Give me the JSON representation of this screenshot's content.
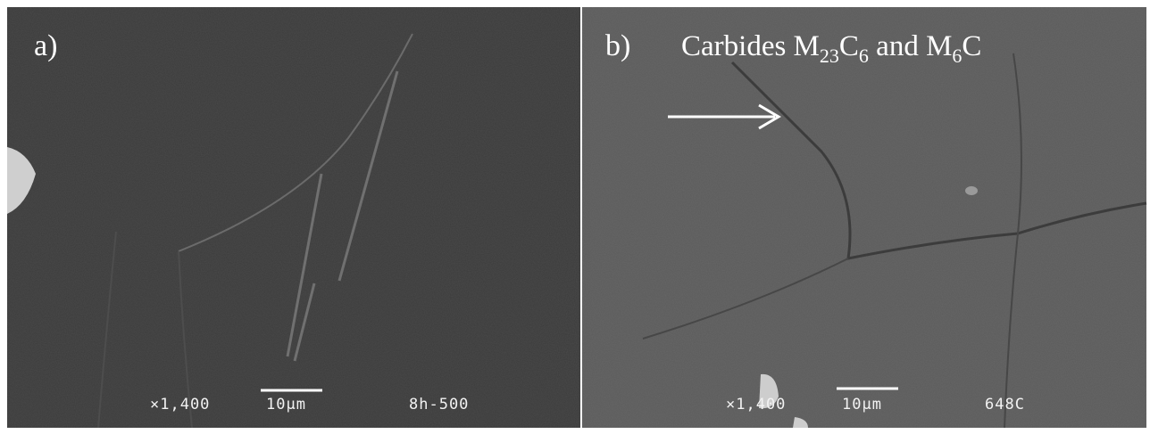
{
  "panel_a": {
    "label": "a)",
    "magnification": "×1,400",
    "scale": "10µm",
    "sample": "8h-500"
  },
  "panel_b": {
    "label": "b)",
    "title_parts": [
      "Carbides M",
      "23",
      "C",
      "6",
      " and M",
      "6",
      "C"
    ],
    "magnification": "×1,400",
    "scale": "10µm",
    "sample": "648C"
  }
}
